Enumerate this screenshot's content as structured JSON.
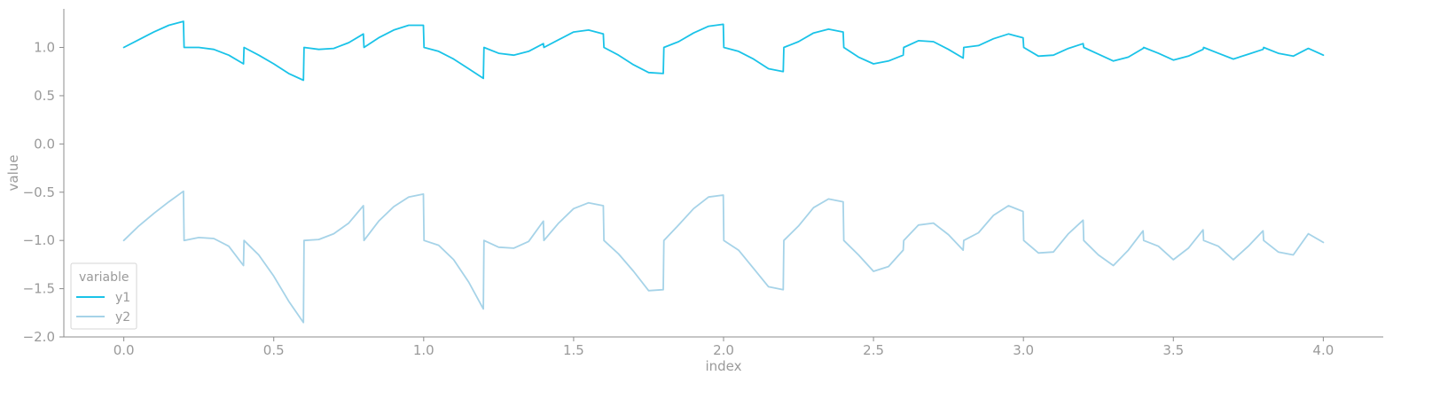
{
  "chart_data": {
    "type": "line",
    "title": "",
    "xlabel": "index",
    "ylabel": "value",
    "xlim": [
      -0.2,
      4.2
    ],
    "ylim": [
      -2.0,
      1.4
    ],
    "xticks": [
      0.0,
      0.5,
      1.0,
      1.5,
      2.0,
      2.5,
      3.0,
      3.5,
      4.0
    ],
    "xtick_labels": [
      "0.0",
      "0.5",
      "1.0",
      "1.5",
      "2.0",
      "2.5",
      "3.0",
      "3.5",
      "4.0"
    ],
    "yticks": [
      -2.0,
      -1.5,
      -1.0,
      -0.5,
      0.0,
      0.5,
      1.0
    ],
    "ytick_labels": [
      "−2.0",
      "−1.5",
      "−1.0",
      "−0.5",
      "0.0",
      "0.5",
      "1.0"
    ],
    "grid": false,
    "legend": {
      "title": "variable",
      "placement": "lower-left",
      "entries": [
        "y1",
        "y2"
      ]
    },
    "series": [
      {
        "name": "y1",
        "color": "#1ac3e8",
        "x": [
          0.0,
          0.05,
          0.1,
          0.15,
          0.199,
          0.201,
          0.25,
          0.3,
          0.35,
          0.399,
          0.401,
          0.45,
          0.5,
          0.55,
          0.599,
          0.601,
          0.65,
          0.7,
          0.75,
          0.799,
          0.801,
          0.85,
          0.9,
          0.95,
          0.999,
          1.001,
          1.05,
          1.1,
          1.15,
          1.199,
          1.201,
          1.25,
          1.3,
          1.35,
          1.399,
          1.401,
          1.45,
          1.5,
          1.55,
          1.599,
          1.601,
          1.65,
          1.7,
          1.75,
          1.799,
          1.801,
          1.85,
          1.9,
          1.95,
          1.999,
          2.001,
          2.05,
          2.1,
          2.15,
          2.199,
          2.201,
          2.25,
          2.3,
          2.35,
          2.399,
          2.401,
          2.45,
          2.5,
          2.55,
          2.599,
          2.601,
          2.65,
          2.7,
          2.75,
          2.799,
          2.801,
          2.85,
          2.9,
          2.95,
          2.999,
          3.001,
          3.05,
          3.1,
          3.15,
          3.199,
          3.201,
          3.25,
          3.3,
          3.35,
          3.399,
          3.401,
          3.45,
          3.5,
          3.55,
          3.599,
          3.601,
          3.65,
          3.7,
          3.75,
          3.799,
          3.801,
          3.85,
          3.9,
          3.95,
          4.0
        ],
        "y": [
          1.0,
          1.08,
          1.16,
          1.23,
          1.27,
          1.0,
          1.0,
          0.98,
          0.92,
          0.83,
          1.0,
          0.92,
          0.83,
          0.73,
          0.66,
          1.0,
          0.98,
          0.99,
          1.05,
          1.14,
          1.0,
          1.1,
          1.18,
          1.23,
          1.23,
          1.0,
          0.96,
          0.88,
          0.78,
          0.68,
          1.0,
          0.94,
          0.92,
          0.96,
          1.04,
          1.0,
          1.08,
          1.16,
          1.18,
          1.14,
          1.0,
          0.92,
          0.82,
          0.74,
          0.73,
          1.0,
          1.06,
          1.15,
          1.22,
          1.24,
          1.0,
          0.96,
          0.88,
          0.78,
          0.75,
          1.0,
          1.06,
          1.15,
          1.19,
          1.16,
          1.0,
          0.9,
          0.83,
          0.86,
          0.92,
          1.0,
          1.07,
          1.06,
          0.98,
          0.89,
          1.0,
          1.02,
          1.09,
          1.14,
          1.1,
          1.0,
          0.91,
          0.92,
          0.99,
          1.04,
          1.0,
          0.93,
          0.86,
          0.9,
          0.99,
          1.0,
          0.94,
          0.87,
          0.91,
          0.98,
          1.0,
          0.94,
          0.88,
          0.93,
          0.98,
          1.0,
          0.94,
          0.91,
          0.99,
          0.92
        ]
      },
      {
        "name": "y2",
        "color": "#a6d3e8",
        "x": [
          0.0,
          0.05,
          0.1,
          0.15,
          0.199,
          0.201,
          0.25,
          0.3,
          0.35,
          0.399,
          0.401,
          0.45,
          0.5,
          0.55,
          0.599,
          0.601,
          0.65,
          0.7,
          0.75,
          0.799,
          0.801,
          0.85,
          0.9,
          0.95,
          0.999,
          1.001,
          1.05,
          1.1,
          1.15,
          1.199,
          1.201,
          1.25,
          1.3,
          1.35,
          1.399,
          1.401,
          1.45,
          1.5,
          1.55,
          1.599,
          1.601,
          1.65,
          1.7,
          1.75,
          1.799,
          1.801,
          1.85,
          1.9,
          1.95,
          1.999,
          2.001,
          2.05,
          2.1,
          2.15,
          2.199,
          2.201,
          2.25,
          2.3,
          2.35,
          2.399,
          2.401,
          2.45,
          2.5,
          2.55,
          2.599,
          2.601,
          2.65,
          2.7,
          2.75,
          2.799,
          2.801,
          2.85,
          2.9,
          2.95,
          2.999,
          3.001,
          3.05,
          3.1,
          3.15,
          3.199,
          3.201,
          3.25,
          3.3,
          3.35,
          3.399,
          3.401,
          3.45,
          3.5,
          3.55,
          3.599,
          3.601,
          3.65,
          3.7,
          3.75,
          3.799,
          3.801,
          3.85,
          3.9,
          3.95,
          4.0
        ],
        "y": [
          -1.0,
          -0.85,
          -0.72,
          -0.6,
          -0.49,
          -1.0,
          -0.97,
          -0.98,
          -1.06,
          -1.26,
          -1.0,
          -1.15,
          -1.37,
          -1.63,
          -1.85,
          -1.0,
          -0.99,
          -0.93,
          -0.82,
          -0.64,
          -1.0,
          -0.8,
          -0.65,
          -0.55,
          -0.52,
          -1.0,
          -1.05,
          -1.2,
          -1.43,
          -1.71,
          -1.0,
          -1.07,
          -1.08,
          -1.01,
          -0.8,
          -1.0,
          -0.82,
          -0.67,
          -0.61,
          -0.64,
          -1.0,
          -1.14,
          -1.32,
          -1.52,
          -1.51,
          -1.0,
          -0.84,
          -0.67,
          -0.55,
          -0.53,
          -1.0,
          -1.1,
          -1.29,
          -1.48,
          -1.51,
          -1.0,
          -0.85,
          -0.66,
          -0.57,
          -0.6,
          -1.0,
          -1.15,
          -1.32,
          -1.27,
          -1.1,
          -1.0,
          -0.84,
          -0.82,
          -0.94,
          -1.1,
          -1.0,
          -0.92,
          -0.74,
          -0.64,
          -0.7,
          -1.0,
          -1.13,
          -1.12,
          -0.93,
          -0.79,
          -1.0,
          -1.15,
          -1.26,
          -1.1,
          -0.9,
          -1.0,
          -1.06,
          -1.2,
          -1.08,
          -0.89,
          -1.0,
          -1.06,
          -1.2,
          -1.06,
          -0.9,
          -1.0,
          -1.12,
          -1.15,
          -0.93,
          -1.02
        ]
      }
    ]
  }
}
